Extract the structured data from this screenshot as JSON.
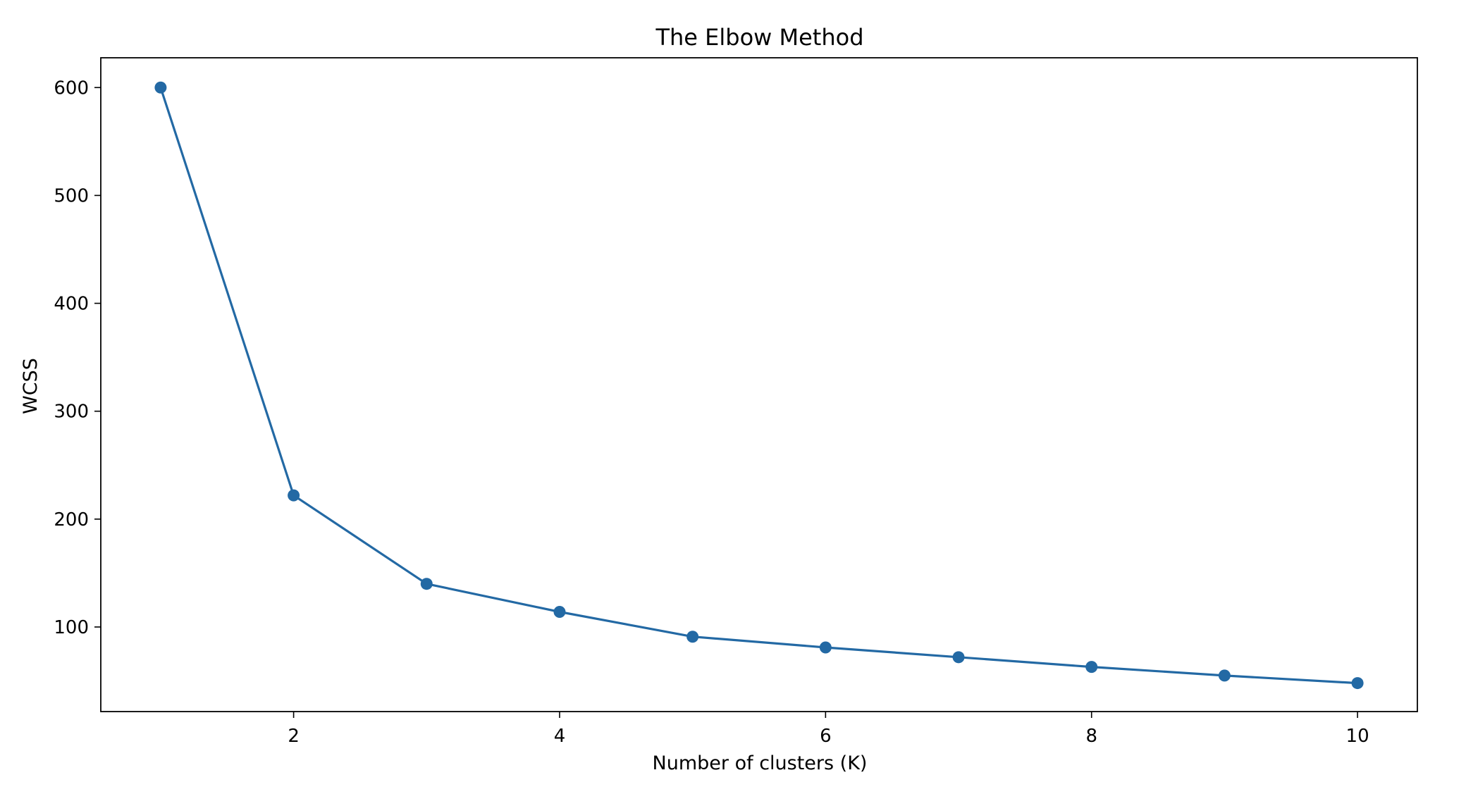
{
  "chart_data": {
    "type": "line",
    "title": "The Elbow Method",
    "xlabel": "Number of clusters (K)",
    "ylabel": "WCSS",
    "x": [
      1,
      2,
      3,
      4,
      5,
      6,
      7,
      8,
      9,
      10
    ],
    "series": [
      {
        "values": [
          600,
          222,
          140,
          114,
          91,
          81,
          72,
          63,
          55,
          48
        ],
        "color": "#2369a4",
        "marker": "circle"
      }
    ],
    "xlim": [
      0.55,
      10.45
    ],
    "ylim": [
      21.6,
      627.6
    ],
    "xticks": [
      2,
      4,
      6,
      8,
      10
    ],
    "yticks": [
      100,
      200,
      300,
      400,
      500,
      600
    ],
    "xtick_labels": [
      "2",
      "4",
      "6",
      "8",
      "10"
    ],
    "ytick_labels": [
      "100",
      "200",
      "300",
      "400",
      "500",
      "600"
    ],
    "grid": false,
    "legend": "none"
  }
}
